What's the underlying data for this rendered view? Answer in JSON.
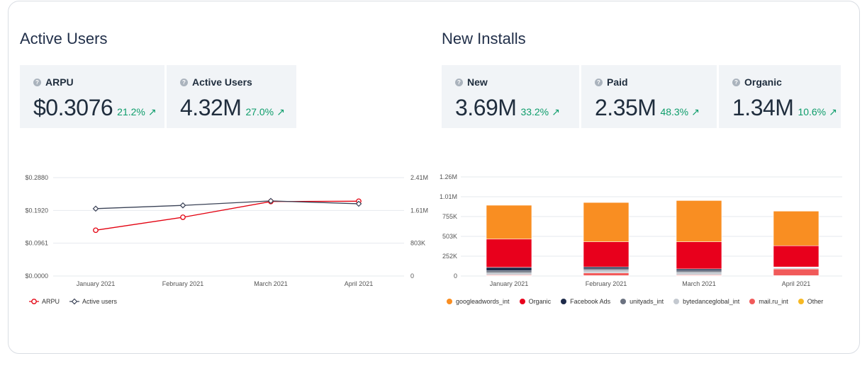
{
  "left": {
    "title": "Active Users",
    "cards": [
      {
        "label": "ARPU",
        "value": "$0.3076",
        "change": "21.2%"
      },
      {
        "label": "Active Users",
        "value": "4.32M",
        "change": "27.0%"
      }
    ]
  },
  "right": {
    "title": "New Installs",
    "cards": [
      {
        "label": "New",
        "value": "3.69M",
        "change": "33.2%"
      },
      {
        "label": "Paid",
        "value": "2.35M",
        "change": "48.3%"
      },
      {
        "label": "Organic",
        "value": "1.34M",
        "change": "10.6%"
      }
    ]
  },
  "icons": {
    "help": "help-circle-icon",
    "trend": "trend-up-icon"
  },
  "chart_data": [
    {
      "type": "line",
      "categories": [
        "January 2021",
        "February 2021",
        "March 2021",
        "April 2021"
      ],
      "y_left_ticks": [
        "$0.0000",
        "$0.0961",
        "$0.1920",
        "$0.2880"
      ],
      "y_right_ticks": [
        "0",
        "803K",
        "1.61M",
        "2.41M"
      ],
      "ylim_left": [
        0,
        0.288
      ],
      "ylim_right": [
        0,
        2410000
      ],
      "grid": true,
      "legend_position": "bottom-left",
      "series": [
        {
          "name": "ARPU",
          "axis": "left",
          "color": "#e3000f",
          "marker": "circle",
          "values": [
            0.134,
            0.172,
            0.218,
            0.219
          ]
        },
        {
          "name": "Active users",
          "axis": "right",
          "color": "#3a4256",
          "marker": "diamond",
          "values": [
            1650000,
            1730000,
            1840000,
            1770000
          ]
        }
      ]
    },
    {
      "type": "bar",
      "stacked": true,
      "categories": [
        "January 2021",
        "February 2021",
        "March 2021",
        "April 2021"
      ],
      "y_ticks": [
        "0",
        "252K",
        "503K",
        "755K",
        "1.01M",
        "1.26M"
      ],
      "ylim": [
        0,
        1260000
      ],
      "grid": true,
      "legend_position": "bottom",
      "series": [
        {
          "name": "Other",
          "color": "#f7b924",
          "values": [
            5000,
            5000,
            5000,
            5000
          ]
        },
        {
          "name": "mail.ru_int",
          "color": "#f15a5a",
          "values": [
            10000,
            35000,
            10000,
            85000
          ]
        },
        {
          "name": "bytedanceglobal_int",
          "color": "#c4c9d0",
          "values": [
            25000,
            30000,
            30000,
            15000
          ]
        },
        {
          "name": "unityads_int",
          "color": "#6b7280",
          "values": [
            25000,
            20000,
            20000,
            5000
          ]
        },
        {
          "name": "Facebook Ads",
          "color": "#1e2b4a",
          "values": [
            45000,
            25000,
            25000,
            5000
          ]
        },
        {
          "name": "Organic",
          "color": "#e8001c",
          "values": [
            360000,
            320000,
            345000,
            270000
          ]
        },
        {
          "name": "googleadwords_int",
          "color": "#f98e22",
          "values": [
            430000,
            500000,
            525000,
            440000
          ]
        }
      ],
      "legend_order": [
        "googleadwords_int",
        "Organic",
        "Facebook Ads",
        "unityads_int",
        "bytedanceglobal_int",
        "mail.ru_int",
        "Other"
      ]
    }
  ]
}
